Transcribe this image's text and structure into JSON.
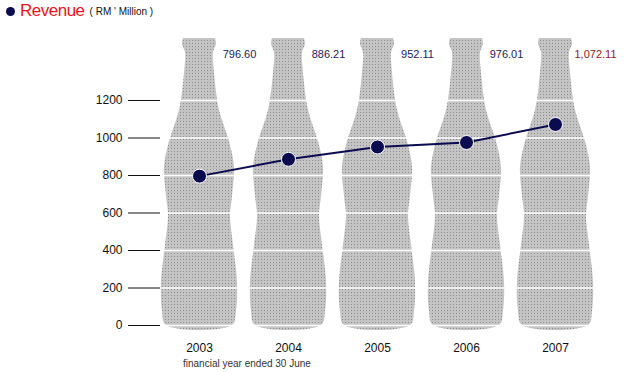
{
  "chart_data": {
    "type": "line",
    "title": "Revenue",
    "subtitle": "( RM ' Million )",
    "caption": "financial year ended 30 June",
    "categories": [
      "2003",
      "2004",
      "2005",
      "2006",
      "2007"
    ],
    "values": [
      796.6,
      886.21,
      952.11,
      976.01,
      1072.11
    ],
    "value_labels": [
      "796.60",
      "886.21",
      "952.11",
      "976.01",
      "1,072.11"
    ],
    "color": "#0b0b4f",
    "marker": "circle",
    "ylim": [
      0,
      1200
    ],
    "yticks": [
      0,
      200,
      400,
      600,
      800,
      1000,
      1200
    ],
    "grid": true,
    "data_labels": true
  }
}
